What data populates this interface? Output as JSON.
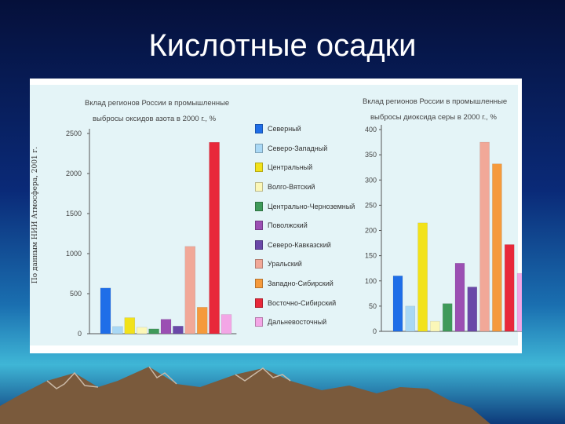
{
  "slide": {
    "title": "Кислотные осадки"
  },
  "figure": {
    "side_note": "По данным НИИ Атмосфера, 2001 г."
  },
  "colors": {
    "panel": "#e4f4f7",
    "Северный": "#1f6ee8",
    "Северо-Западный": "#a9d8f5",
    "Центральный": "#f2e21a",
    "Волго-Вятский": "#fbf7b8",
    "Центрально-Черноземный": "#3f9a5a",
    "Поволжский": "#9b4fb3",
    "Северо-Кавказский": "#6a48a8",
    "Уральский": "#f1a898",
    "Западно-Сибирский": "#f59a3c",
    "Восточно-Сибирский": "#e8283a",
    "Дальневосточный": "#f3a6e6"
  },
  "chart_data": [
    {
      "type": "bar",
      "title": "Вклад регионов России в промышленные выбросы оксидов азота в 2000 г., %",
      "categories": [
        "Северный",
        "Северо-Западный",
        "Центральный",
        "Волго-Вятский",
        "Центрально-Черноземный",
        "Поволжский",
        "Северо-Кавказский",
        "Уральский",
        "Западно-Сибирский",
        "Восточно-Сибирский",
        "Дальневосточный"
      ],
      "values": [
        570,
        90,
        200,
        80,
        60,
        180,
        95,
        1090,
        330,
        2390,
        240
      ],
      "yticks": [
        0,
        500,
        1000,
        1500,
        2000,
        2500
      ],
      "ylim": [
        0,
        2500
      ],
      "legend": "right"
    },
    {
      "type": "bar",
      "title": "Вклад регионов России в промышленные выбросы диоксида серы в 2000 г., %",
      "categories": [
        "Северный",
        "Северо-Западный",
        "Центральный",
        "Волго-Вятский",
        "Центрально-Черноземный",
        "Поволжский",
        "Северо-Кавказский",
        "Уральский",
        "Западно-Сибирский",
        "Восточно-Сибирский",
        "Дальневосточный"
      ],
      "values": [
        110,
        50,
        215,
        20,
        55,
        135,
        88,
        375,
        332,
        172,
        115
      ],
      "yticks": [
        0,
        50,
        100,
        150,
        200,
        250,
        300,
        350,
        400
      ],
      "ylim": [
        0,
        400
      ]
    }
  ],
  "legend": {
    "items": [
      "Северный",
      "Северо-Западный",
      "Центральный",
      "Волго-Вятский",
      "Центрально-Черноземный",
      "Поволжский",
      "Северо-Кавказский",
      "Уральский",
      "Западно-Сибирский",
      "Восточно-Сибирский",
      "Дальневосточный"
    ]
  }
}
